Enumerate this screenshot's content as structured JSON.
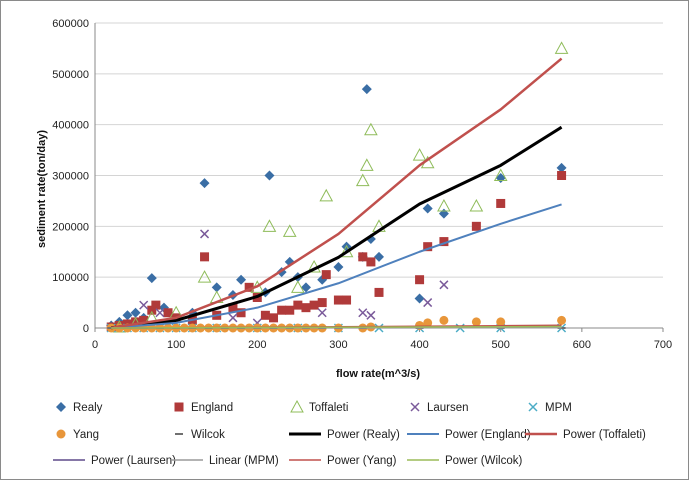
{
  "chart_data": {
    "type": "scatter",
    "xlabel": "flow rate(m^3/s)",
    "ylabel": "sediment rate(ton/day)",
    "xlim": [
      0,
      700
    ],
    "ylim": [
      0,
      600000
    ],
    "x_ticks": [
      "0",
      "100",
      "200",
      "300",
      "400",
      "500",
      "600",
      "700"
    ],
    "y_ticks": [
      "0",
      "100000",
      "200000",
      "300000",
      "400000",
      "500000",
      "600000"
    ],
    "grid": "horizontal major",
    "legend_position": "bottom",
    "series": [
      {
        "name": "Realy",
        "kind": "points",
        "marker": "diamond",
        "color": "#3a6ea5",
        "points": [
          [
            20,
            5000
          ],
          [
            30,
            12000
          ],
          [
            40,
            25000
          ],
          [
            50,
            30000
          ],
          [
            60,
            20000
          ],
          [
            70,
            98000
          ],
          [
            85,
            40000
          ],
          [
            120,
            30000
          ],
          [
            135,
            285000
          ],
          [
            150,
            80000
          ],
          [
            170,
            65000
          ],
          [
            180,
            95000
          ],
          [
            210,
            70000
          ],
          [
            215,
            300000
          ],
          [
            230,
            110000
          ],
          [
            240,
            130000
          ],
          [
            250,
            100000
          ],
          [
            260,
            80000
          ],
          [
            280,
            95000
          ],
          [
            300,
            120000
          ],
          [
            310,
            160000
          ],
          [
            330,
            140000
          ],
          [
            335,
            470000
          ],
          [
            340,
            175000
          ],
          [
            350,
            140000
          ],
          [
            400,
            58000
          ],
          [
            410,
            235000
          ],
          [
            430,
            225000
          ],
          [
            500,
            295000
          ],
          [
            575,
            315000
          ]
        ]
      },
      {
        "name": "England",
        "kind": "points",
        "marker": "square",
        "color": "#b03a3a",
        "points": [
          [
            20,
            2000
          ],
          [
            30,
            5000
          ],
          [
            40,
            8000
          ],
          [
            50,
            12000
          ],
          [
            60,
            15000
          ],
          [
            70,
            35000
          ],
          [
            75,
            45000
          ],
          [
            90,
            30000
          ],
          [
            100,
            20000
          ],
          [
            120,
            15000
          ],
          [
            135,
            140000
          ],
          [
            150,
            25000
          ],
          [
            170,
            40000
          ],
          [
            180,
            30000
          ],
          [
            190,
            80000
          ],
          [
            200,
            60000
          ],
          [
            210,
            25000
          ],
          [
            220,
            20000
          ],
          [
            230,
            35000
          ],
          [
            240,
            35000
          ],
          [
            250,
            45000
          ],
          [
            260,
            40000
          ],
          [
            270,
            45000
          ],
          [
            280,
            50000
          ],
          [
            285,
            105000
          ],
          [
            300,
            55000
          ],
          [
            310,
            55000
          ],
          [
            330,
            140000
          ],
          [
            340,
            130000
          ],
          [
            350,
            70000
          ],
          [
            400,
            95000
          ],
          [
            410,
            160000
          ],
          [
            430,
            170000
          ],
          [
            470,
            200000
          ],
          [
            500,
            245000
          ],
          [
            575,
            300000
          ]
        ]
      },
      {
        "name": "Toffaleti",
        "kind": "points",
        "marker": "triangle",
        "color": "#8fbc5a",
        "points": [
          [
            30,
            2000
          ],
          [
            50,
            8000
          ],
          [
            70,
            20000
          ],
          [
            100,
            30000
          ],
          [
            135,
            100000
          ],
          [
            150,
            60000
          ],
          [
            200,
            80000
          ],
          [
            215,
            200000
          ],
          [
            240,
            190000
          ],
          [
            250,
            80000
          ],
          [
            270,
            120000
          ],
          [
            285,
            260000
          ],
          [
            310,
            150000
          ],
          [
            330,
            290000
          ],
          [
            335,
            320000
          ],
          [
            340,
            390000
          ],
          [
            350,
            200000
          ],
          [
            400,
            340000
          ],
          [
            410,
            325000
          ],
          [
            430,
            240000
          ],
          [
            470,
            240000
          ],
          [
            500,
            300000
          ],
          [
            575,
            550000
          ]
        ]
      },
      {
        "name": "Laursen",
        "kind": "points",
        "marker": "x",
        "color": "#7a5a9a",
        "points": [
          [
            60,
            45000
          ],
          [
            80,
            30000
          ],
          [
            135,
            185000
          ],
          [
            170,
            20000
          ],
          [
            200,
            10000
          ],
          [
            280,
            30000
          ],
          [
            330,
            30000
          ],
          [
            340,
            25000
          ],
          [
            410,
            50000
          ],
          [
            430,
            85000
          ]
        ]
      },
      {
        "name": "MPM",
        "kind": "points",
        "marker": "x",
        "color": "#4bacc6",
        "points": [
          [
            20,
            0
          ],
          [
            40,
            0
          ],
          [
            60,
            0
          ],
          [
            80,
            0
          ],
          [
            100,
            0
          ],
          [
            120,
            0
          ],
          [
            150,
            0
          ],
          [
            200,
            0
          ],
          [
            250,
            0
          ],
          [
            300,
            0
          ],
          [
            350,
            0
          ],
          [
            400,
            0
          ],
          [
            450,
            0
          ],
          [
            500,
            0
          ],
          [
            575,
            0
          ]
        ]
      },
      {
        "name": "Yang",
        "kind": "points",
        "marker": "circle",
        "color": "#e8963a",
        "points": [
          [
            20,
            0
          ],
          [
            30,
            0
          ],
          [
            40,
            0
          ],
          [
            50,
            0
          ],
          [
            60,
            0
          ],
          [
            70,
            0
          ],
          [
            80,
            0
          ],
          [
            90,
            0
          ],
          [
            100,
            0
          ],
          [
            110,
            0
          ],
          [
            120,
            0
          ],
          [
            130,
            0
          ],
          [
            140,
            0
          ],
          [
            150,
            0
          ],
          [
            160,
            0
          ],
          [
            170,
            0
          ],
          [
            180,
            0
          ],
          [
            190,
            0
          ],
          [
            200,
            0
          ],
          [
            210,
            0
          ],
          [
            220,
            0
          ],
          [
            230,
            0
          ],
          [
            240,
            0
          ],
          [
            250,
            0
          ],
          [
            260,
            0
          ],
          [
            270,
            0
          ],
          [
            280,
            0
          ],
          [
            300,
            0
          ],
          [
            330,
            0
          ],
          [
            340,
            2000
          ],
          [
            400,
            5000
          ],
          [
            410,
            10000
          ],
          [
            430,
            15000
          ],
          [
            470,
            12000
          ],
          [
            500,
            12000
          ],
          [
            575,
            15000
          ]
        ]
      },
      {
        "name": "Wilcok",
        "kind": "points",
        "marker": "dash",
        "color": "#707070",
        "points": [
          [
            20,
            0
          ],
          [
            40,
            0
          ],
          [
            60,
            0
          ],
          [
            80,
            0
          ],
          [
            100,
            0
          ],
          [
            120,
            0
          ],
          [
            140,
            0
          ],
          [
            160,
            0
          ],
          [
            180,
            0
          ],
          [
            200,
            0
          ],
          [
            220,
            0
          ],
          [
            240,
            0
          ],
          [
            260,
            0
          ],
          [
            280,
            0
          ],
          [
            300,
            0
          ],
          [
            330,
            0
          ],
          [
            400,
            0
          ],
          [
            500,
            0
          ],
          [
            575,
            0
          ]
        ]
      },
      {
        "name": "Power (Realy)",
        "kind": "line",
        "color": "#000000",
        "width": 3,
        "x": [
          20,
          100,
          200,
          300,
          400,
          500,
          575
        ],
        "y": [
          400,
          15000,
          62000,
          139000,
          244000,
          320000,
          395000
        ]
      },
      {
        "name": "Power (England)",
        "kind": "line",
        "color": "#4f81bd",
        "width": 2,
        "x": [
          20,
          100,
          200,
          300,
          400,
          500,
          575
        ],
        "y": [
          300,
          10000,
          40000,
          88000,
          150000,
          205000,
          243000
        ]
      },
      {
        "name": "Power (Toffaleti)",
        "kind": "line",
        "color": "#c0504d",
        "width": 2.5,
        "x": [
          20,
          100,
          200,
          300,
          400,
          500,
          575
        ],
        "y": [
          500,
          20000,
          82000,
          185000,
          320000,
          430000,
          530000
        ]
      },
      {
        "name": "Power (Laursen)",
        "kind": "line",
        "color": "#5e4a8a",
        "width": 1.5,
        "x": [
          20,
          100,
          200,
          300,
          400,
          500,
          575
        ],
        "y": [
          0,
          300,
          700,
          1200,
          1700,
          2300,
          2700
        ]
      },
      {
        "name": "Linear (MPM)",
        "kind": "line",
        "color": "#9a9a9a",
        "width": 1.5,
        "x": [
          20,
          575
        ],
        "y": [
          0,
          500
        ]
      },
      {
        "name": "Power (Yang)",
        "kind": "line",
        "color": "#c0504d",
        "width": 1.5,
        "x": [
          20,
          100,
          200,
          300,
          400,
          500,
          575
        ],
        "y": [
          0,
          600,
          1500,
          2500,
          3500,
          4500,
          5500
        ]
      },
      {
        "name": "Power (Wilcok)",
        "kind": "line",
        "color": "#9bbb59",
        "width": 1.5,
        "x": [
          20,
          100,
          200,
          300,
          400,
          500,
          575
        ],
        "y": [
          0,
          400,
          900,
          1400,
          1900,
          2500,
          2900
        ]
      }
    ]
  }
}
